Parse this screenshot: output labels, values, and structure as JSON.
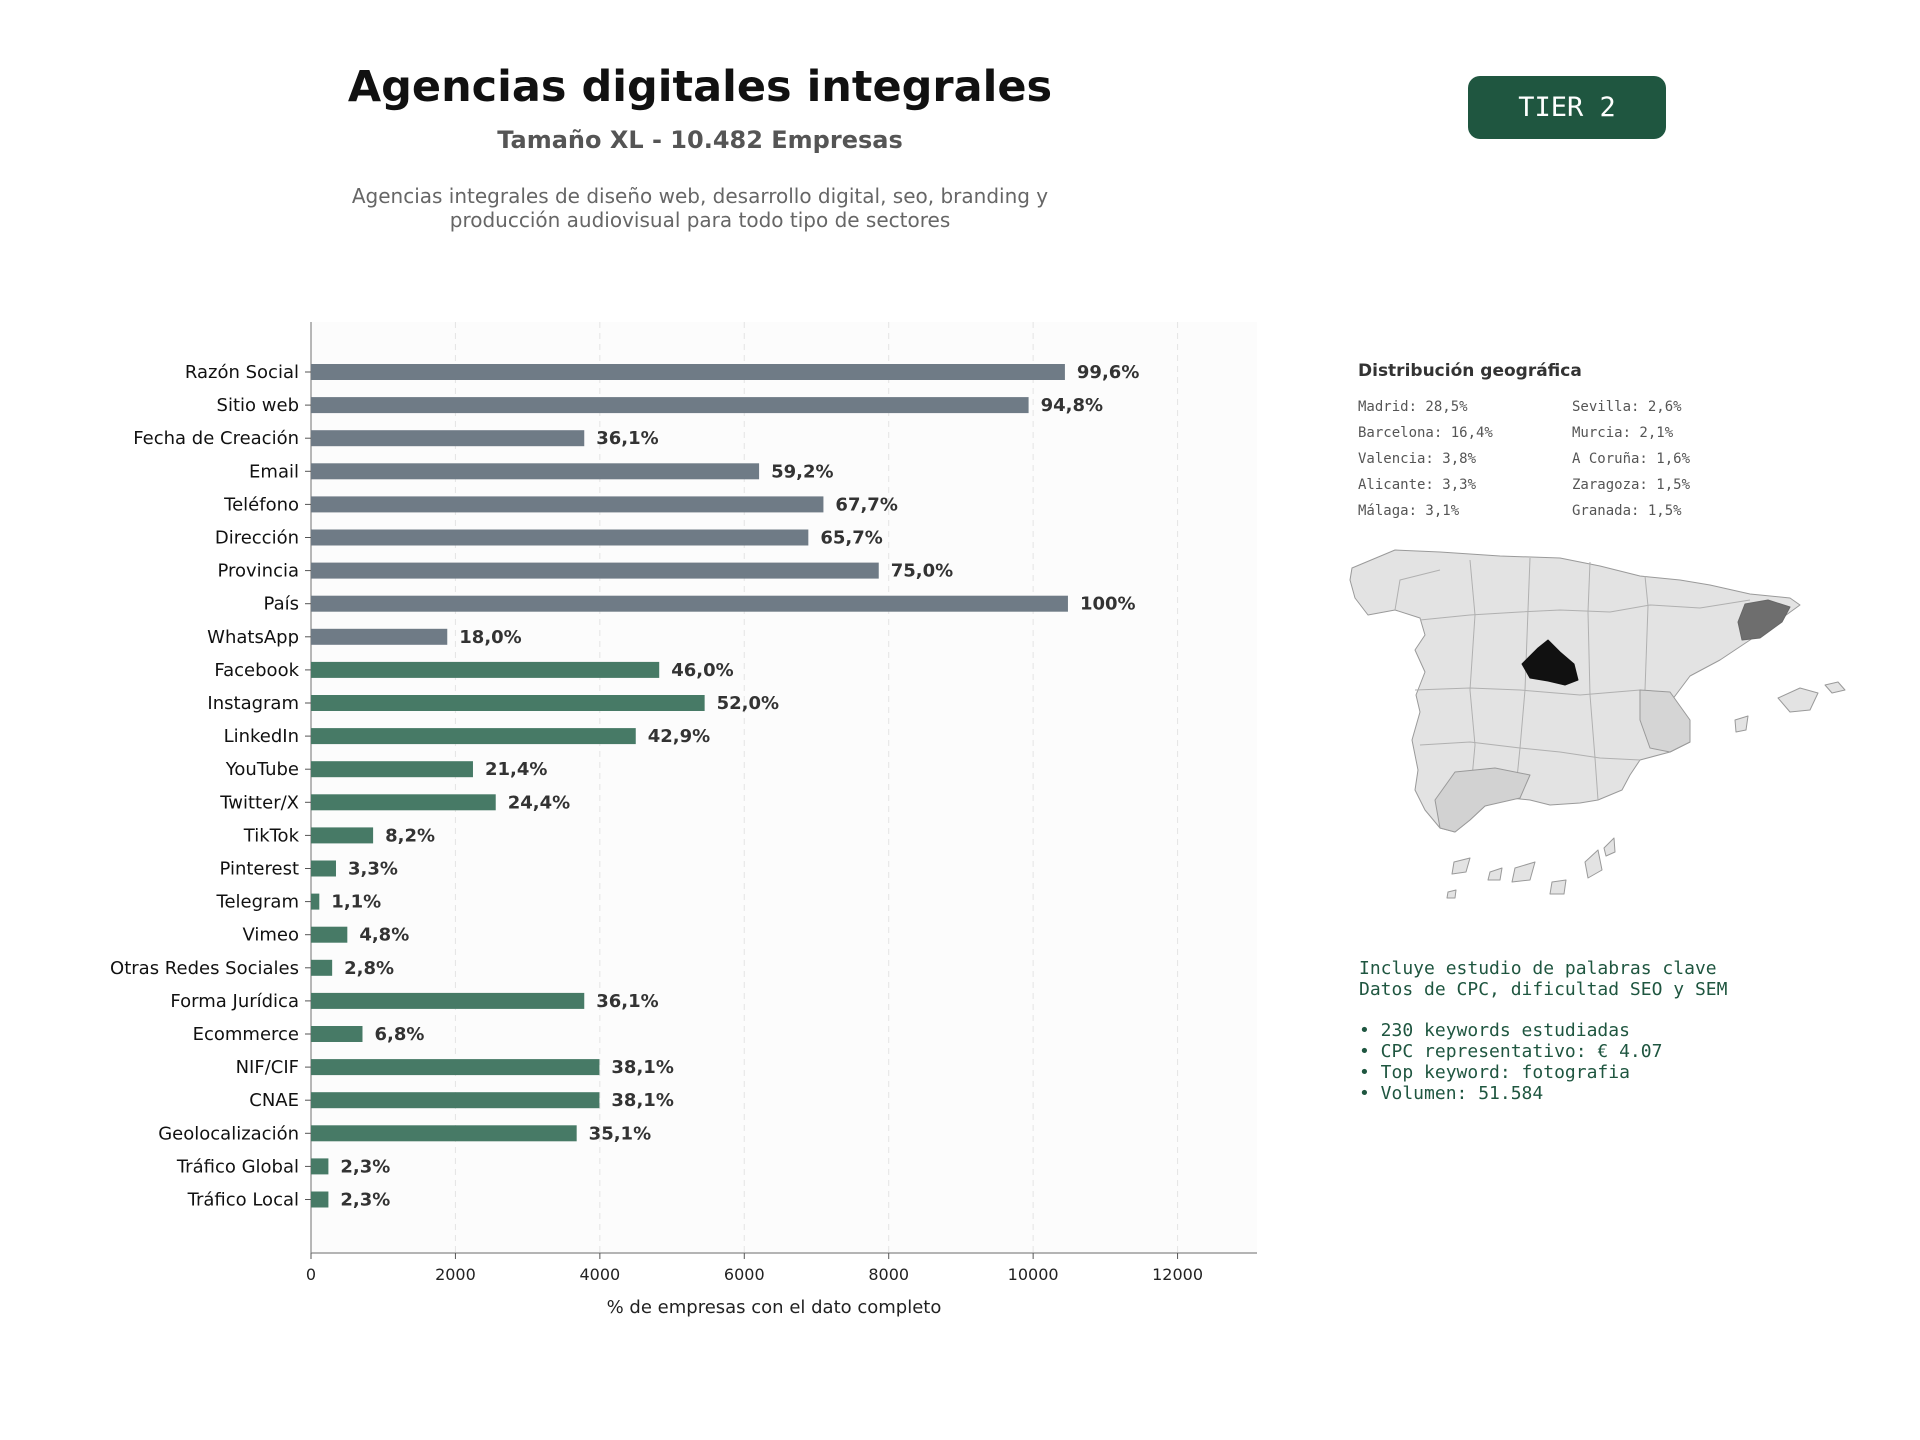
{
  "header": {
    "title": "Agencias digitales integrales",
    "subtitle": "Tamaño XL - 10.482 Empresas",
    "description_line1": "Agencias integrales de diseño web, desarrollo digital, seo, branding y",
    "description_line2": "producción audiovisual para todo tipo de sectores",
    "tier": "TIER 2"
  },
  "colors": {
    "gray_bar": "#6f7b86",
    "green_bar": "#477a66",
    "accent": "#1f5640"
  },
  "chart_data": {
    "type": "bar",
    "orientation": "horizontal",
    "xlabel": "% de empresas con el dato completo",
    "xlim": [
      0,
      13100
    ],
    "xticks": [
      0,
      2000,
      4000,
      6000,
      8000,
      10000,
      12000
    ],
    "grid": "vertical dashed",
    "categories": [
      "Razón Social",
      "Sitio web",
      "Fecha de Creación",
      "Email",
      "Teléfono",
      "Dirección",
      "Provincia",
      "País",
      "WhatsApp",
      "Facebook",
      "Instagram",
      "LinkedIn",
      "YouTube",
      "Twitter/X",
      "TikTok",
      "Pinterest",
      "Telegram",
      "Vimeo",
      "Otras Redes Sociales",
      "Forma Jurídica",
      "Ecommerce",
      "NIF/CIF",
      "CNAE",
      "Geolocalización",
      "Tráfico Global",
      "Tráfico Local"
    ],
    "values": [
      10440,
      9937,
      3784,
      6205,
      7096,
      6887,
      7862,
      10482,
      1887,
      4822,
      5451,
      4497,
      2243,
      2558,
      860,
      346,
      115,
      503,
      293,
      3784,
      713,
      3994,
      3994,
      3679,
      241,
      241
    ],
    "labels": [
      "99,6%",
      "94,8%",
      "36,1%",
      "59,2%",
      "67,7%",
      "65,7%",
      "75,0%",
      "100%",
      "18,0%",
      "46,0%",
      "52,0%",
      "42,9%",
      "21,4%",
      "24,4%",
      "8,2%",
      "3,3%",
      "1,1%",
      "4,8%",
      "2,8%",
      "36,1%",
      "6,8%",
      "38,1%",
      "38,1%",
      "35,1%",
      "2,3%",
      "2,3%"
    ],
    "color_groups": [
      "gray",
      "gray",
      "gray",
      "gray",
      "gray",
      "gray",
      "gray",
      "gray",
      "gray",
      "green",
      "green",
      "green",
      "green",
      "green",
      "green",
      "green",
      "green",
      "green",
      "green",
      "green",
      "green",
      "green",
      "green",
      "green",
      "green",
      "green"
    ]
  },
  "geo": {
    "title": "Distribución geográfica",
    "items": [
      "Madrid: 28,5%",
      "Sevilla: 2,6%",
      "Barcelona: 16,4%",
      "Murcia: 2,1%",
      "Valencia: 3,8%",
      "A Coruña: 1,6%",
      "Alicante: 3,3%",
      "Zaragoza: 1,5%",
      "Málaga: 3,1%",
      "Granada: 1,5%"
    ]
  },
  "keywords": {
    "line1": "Incluye estudio de palabras clave",
    "line2": "Datos de CPC, dificultad SEO y SEM",
    "bullets": [
      "• 230 keywords estudiadas",
      "• CPC representativo: € 4.07",
      "• Top keyword: fotografia",
      "• Volumen: 51.584"
    ]
  }
}
